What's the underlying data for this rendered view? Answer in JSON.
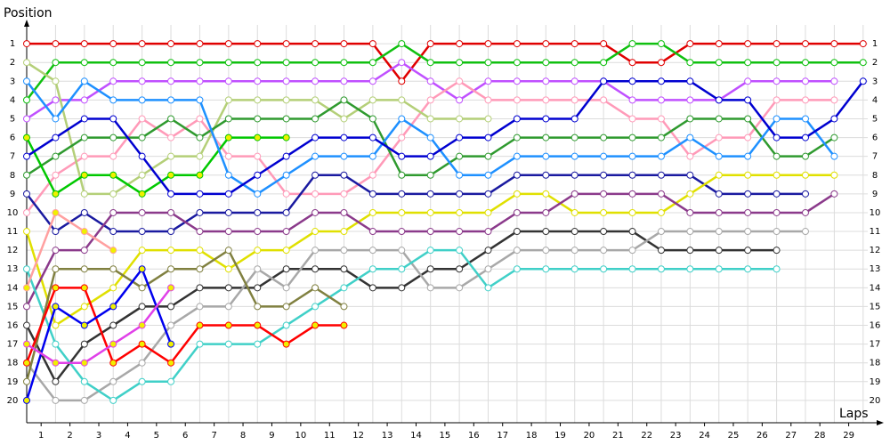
{
  "chart_data": {
    "type": "line",
    "ylabel": "Position",
    "xlabel": "Laps",
    "x": [
      0,
      1,
      2,
      3,
      4,
      5,
      6,
      7,
      8,
      9,
      10,
      11,
      12,
      13,
      14,
      15,
      16,
      17,
      18,
      19,
      20,
      21,
      22,
      23,
      24,
      25,
      26,
      27,
      28,
      29
    ],
    "xlim": [
      0,
      29.5
    ],
    "xticks": [
      {
        "value": 0.5,
        "label": "1"
      },
      {
        "value": 1.5,
        "label": "2"
      },
      {
        "value": 2.5,
        "label": "3"
      },
      {
        "value": 3.5,
        "label": "4"
      },
      {
        "value": 4.5,
        "label": "5"
      },
      {
        "value": 5.5,
        "label": "6"
      },
      {
        "value": 6.5,
        "label": "7"
      },
      {
        "value": 7.5,
        "label": "8"
      },
      {
        "value": 8.5,
        "label": "9"
      },
      {
        "value": 9.5,
        "label": "10"
      },
      {
        "value": 10.5,
        "label": "11"
      },
      {
        "value": 11.5,
        "label": "12"
      },
      {
        "value": 12.5,
        "label": "13"
      },
      {
        "value": 13.5,
        "label": "14"
      },
      {
        "value": 14.5,
        "label": "15"
      },
      {
        "value": 15.5,
        "label": "16"
      },
      {
        "value": 16.5,
        "label": "17"
      },
      {
        "value": 17.5,
        "label": "18"
      },
      {
        "value": 18.5,
        "label": "19"
      },
      {
        "value": 19.5,
        "label": "20"
      },
      {
        "value": 20.5,
        "label": "21"
      },
      {
        "value": 21.5,
        "label": "22"
      },
      {
        "value": 22.5,
        "label": "23"
      },
      {
        "value": 23.5,
        "label": "24"
      },
      {
        "value": 24.5,
        "label": "25"
      },
      {
        "value": 25.5,
        "label": "26"
      },
      {
        "value": 26.5,
        "label": "27"
      },
      {
        "value": 27.5,
        "label": "28"
      },
      {
        "value": 28.5,
        "label": "29"
      }
    ],
    "ylim": [
      21,
      0
    ],
    "yticks": [
      1,
      2,
      3,
      4,
      5,
      6,
      7,
      8,
      9,
      10,
      11,
      12,
      13,
      14,
      15,
      16,
      17,
      18,
      19,
      20
    ],
    "grid": true,
    "series": [
      {
        "color": "#e00000",
        "marker_fill": "#ffffff",
        "values": [
          1,
          1,
          1,
          1,
          1,
          1,
          1,
          1,
          1,
          1,
          1,
          1,
          1,
          3,
          1,
          1,
          1,
          1,
          1,
          1,
          1,
          2,
          2,
          1,
          1,
          1,
          1,
          1,
          1,
          1
        ]
      },
      {
        "color": "#10c010",
        "marker_fill": "#ffffff",
        "values": [
          4,
          2,
          2,
          2,
          2,
          2,
          2,
          2,
          2,
          2,
          2,
          2,
          2,
          1,
          2,
          2,
          2,
          2,
          2,
          2,
          2,
          1,
          1,
          2,
          2,
          2,
          2,
          2,
          2,
          2
        ]
      },
      {
        "color": "#c050ff",
        "marker_fill": "#ffffff",
        "values": [
          5,
          4,
          4,
          3,
          3,
          3,
          3,
          3,
          3,
          3,
          3,
          3,
          3,
          2,
          3,
          4,
          3,
          3,
          3,
          3,
          3,
          4,
          4,
          4,
          4,
          3,
          3,
          3,
          3,
          null
        ]
      },
      {
        "color": "#ff9ab8",
        "marker_fill": "#ffffff",
        "values": [
          10,
          8,
          7,
          7,
          5,
          6,
          5,
          7,
          7,
          9,
          9,
          9,
          8,
          6,
          4,
          3,
          4,
          4,
          4,
          4,
          4,
          5,
          5,
          7,
          6,
          6,
          4,
          4,
          4,
          null
        ]
      },
      {
        "color": "#b4cf78",
        "marker_fill": "#ffffff",
        "values": [
          2,
          3,
          9,
          9,
          8,
          7,
          7,
          4,
          4,
          4,
          4,
          5,
          4,
          4,
          5,
          5,
          5,
          null,
          null,
          null,
          null,
          null,
          null,
          null,
          null,
          null,
          null,
          null,
          null,
          null
        ]
      },
      {
        "color": "#2f9a2f",
        "marker_fill": "#ffffff",
        "values": [
          8,
          7,
          6,
          6,
          6,
          5,
          6,
          5,
          5,
          5,
          5,
          4,
          5,
          8,
          8,
          7,
          7,
          6,
          6,
          6,
          6,
          6,
          6,
          5,
          5,
          5,
          7,
          7,
          6,
          null
        ]
      },
      {
        "color": "#00c800",
        "marker_fill": "#f0f000",
        "values": [
          6,
          9,
          8,
          8,
          9,
          8,
          8,
          6,
          6,
          6,
          null,
          null,
          null,
          null,
          null,
          null,
          null,
          null,
          null,
          null,
          null,
          null,
          null,
          null,
          null,
          null,
          null,
          null,
          null,
          null
        ]
      },
      {
        "color": "#1e90ff",
        "marker_fill": "#ffffff",
        "values": [
          3,
          5,
          3,
          4,
          4,
          4,
          4,
          8,
          9,
          8,
          7,
          7,
          7,
          5,
          6,
          8,
          8,
          7,
          7,
          7,
          7,
          7,
          7,
          6,
          7,
          7,
          5,
          5,
          7,
          null
        ]
      },
      {
        "color": "#0000d0",
        "marker_fill": "#ffffff",
        "values": [
          7,
          6,
          5,
          5,
          7,
          9,
          9,
          9,
          8,
          7,
          6,
          6,
          6,
          7,
          7,
          6,
          6,
          5,
          5,
          5,
          3,
          3,
          3,
          3,
          4,
          4,
          6,
          6,
          5,
          3
        ]
      },
      {
        "color": "#1a1aa0",
        "marker_fill": "#ffffff",
        "values": [
          9,
          11,
          10,
          11,
          11,
          11,
          10,
          10,
          10,
          10,
          8,
          8,
          9,
          9,
          9,
          9,
          9,
          8,
          8,
          8,
          8,
          8,
          8,
          8,
          9,
          9,
          9,
          9,
          null,
          null
        ]
      },
      {
        "color": "#e0e000",
        "marker_fill": "#ffffff",
        "values": [
          11,
          16,
          15,
          14,
          12,
          12,
          12,
          13,
          12,
          12,
          11,
          11,
          10,
          10,
          10,
          10,
          10,
          9,
          9,
          10,
          10,
          10,
          10,
          9,
          8,
          8,
          8,
          8,
          8,
          null
        ]
      },
      {
        "color": "#8b3a8b",
        "marker_fill": "#ffffff",
        "values": [
          15,
          12,
          12,
          10,
          10,
          10,
          11,
          11,
          11,
          11,
          10,
          10,
          11,
          11,
          11,
          11,
          11,
          10,
          10,
          9,
          9,
          9,
          9,
          10,
          10,
          10,
          10,
          10,
          9,
          null
        ]
      },
      {
        "color": "#333333",
        "marker_fill": "#ffffff",
        "values": [
          16,
          19,
          17,
          16,
          15,
          15,
          14,
          14,
          14,
          13,
          13,
          13,
          14,
          14,
          13,
          13,
          12,
          11,
          11,
          11,
          11,
          11,
          12,
          12,
          12,
          12,
          12,
          null,
          null,
          null
        ]
      },
      {
        "color": "#a8a8a8",
        "marker_fill": "#ffffff",
        "values": [
          18,
          20,
          20,
          19,
          18,
          16,
          15,
          15,
          13,
          14,
          12,
          12,
          12,
          12,
          14,
          14,
          13,
          12,
          12,
          12,
          12,
          12,
          11,
          11,
          11,
          11,
          11,
          11,
          null,
          null
        ]
      },
      {
        "color": "#40d0c8",
        "marker_fill": "#ffffff",
        "values": [
          13,
          17,
          19,
          20,
          19,
          19,
          17,
          17,
          17,
          16,
          15,
          14,
          13,
          13,
          12,
          12,
          14,
          13,
          13,
          13,
          13,
          13,
          13,
          13,
          13,
          13,
          13,
          null,
          null,
          null
        ]
      },
      {
        "color": "#808040",
        "marker_fill": "#ffffff",
        "values": [
          19,
          13,
          13,
          13,
          14,
          13,
          13,
          12,
          15,
          15,
          14,
          15,
          null,
          null,
          null,
          null,
          null,
          null,
          null,
          null,
          null,
          null,
          null,
          null,
          null,
          null,
          null,
          null,
          null,
          null
        ]
      },
      {
        "color": "#ff0000",
        "marker_fill": "#f0f000",
        "values": [
          18,
          14,
          14,
          18,
          17,
          18,
          16,
          16,
          16,
          17,
          16,
          16,
          null,
          null,
          null,
          null,
          null,
          null,
          null,
          null,
          null,
          null,
          null,
          null,
          null,
          null,
          null,
          null,
          null,
          null
        ]
      },
      {
        "color": "#0000ee",
        "marker_fill": "#f0f000",
        "values": [
          20,
          15,
          16,
          15,
          13,
          17,
          null,
          null,
          null,
          null,
          null,
          null,
          null,
          null,
          null,
          null,
          null,
          null,
          null,
          null,
          null,
          null,
          null,
          null,
          null,
          null,
          null,
          null,
          null,
          null
        ]
      },
      {
        "color": "#e040e8",
        "marker_fill": "#f0f000",
        "values": [
          17,
          18,
          18,
          17,
          16,
          14,
          null,
          null,
          null,
          null,
          null,
          null,
          null,
          null,
          null,
          null,
          null,
          null,
          null,
          null,
          null,
          null,
          null,
          null,
          null,
          null,
          null,
          null,
          null,
          null
        ]
      },
      {
        "color": "#ffa0a0",
        "marker_fill": "#f0f000",
        "values": [
          14,
          10,
          11,
          12,
          null,
          null,
          null,
          null,
          null,
          null,
          null,
          null,
          null,
          null,
          null,
          null,
          null,
          null,
          null,
          null,
          null,
          null,
          null,
          null,
          null,
          null,
          null,
          null,
          null,
          null
        ]
      }
    ]
  }
}
